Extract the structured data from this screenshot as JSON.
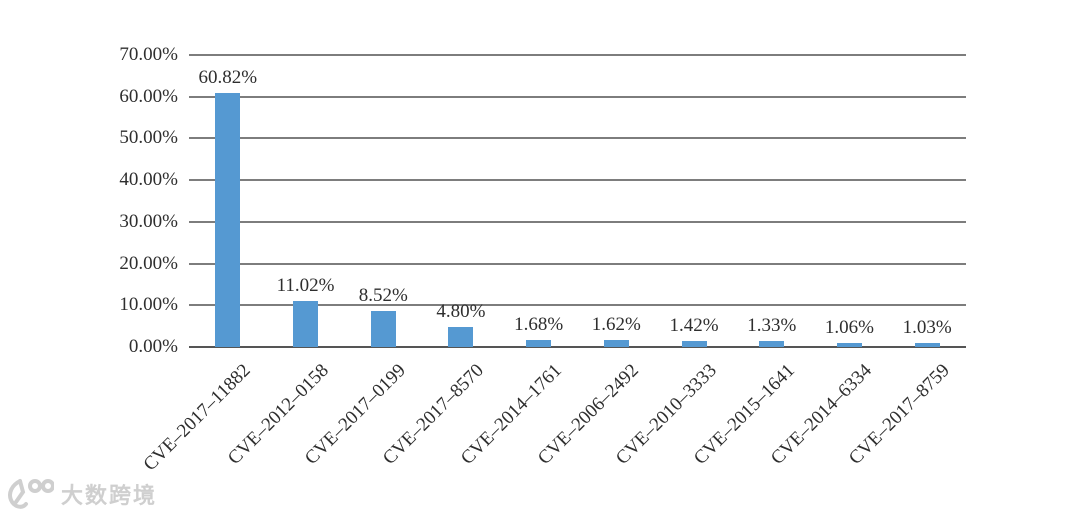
{
  "page": {
    "background": "#ffffff"
  },
  "watermark": {
    "text": "大数跨境",
    "logo": "100-swoosh-logo",
    "color": "#cfcfcf"
  },
  "chart_data": {
    "type": "bar",
    "title": "",
    "xlabel": "",
    "ylabel": "",
    "categories": [
      "CVE–2017–11882",
      "CVE–2012–0158",
      "CVE–2017–0199",
      "CVE–2017–8570",
      "CVE–2014–1761",
      "CVE–2006–2492",
      "CVE–2010–3333",
      "CVE–2015–1641",
      "CVE–2014–6334",
      "CVE–2017–8759"
    ],
    "values": [
      60.82,
      11.02,
      8.52,
      4.8,
      1.68,
      1.62,
      1.42,
      1.33,
      1.06,
      1.03
    ],
    "data_labels": [
      "60.82%",
      "11.02%",
      "8.52%",
      "4.80%",
      "1.68%",
      "1.62%",
      "1.42%",
      "1.33%",
      "1.06%",
      "1.03%"
    ],
    "ylim": [
      0,
      70
    ],
    "ytick_step": 10,
    "ytick_labels": [
      "0.00%",
      "10.00%",
      "20.00%",
      "30.00%",
      "40.00%",
      "50.00%",
      "60.00%",
      "70.00%"
    ],
    "grid": true,
    "legend": "none",
    "colors": {
      "bar": "#5599d2",
      "gridline": "#7d7d7d",
      "axis_line": "#555555",
      "text": "#2e2e2e"
    }
  }
}
